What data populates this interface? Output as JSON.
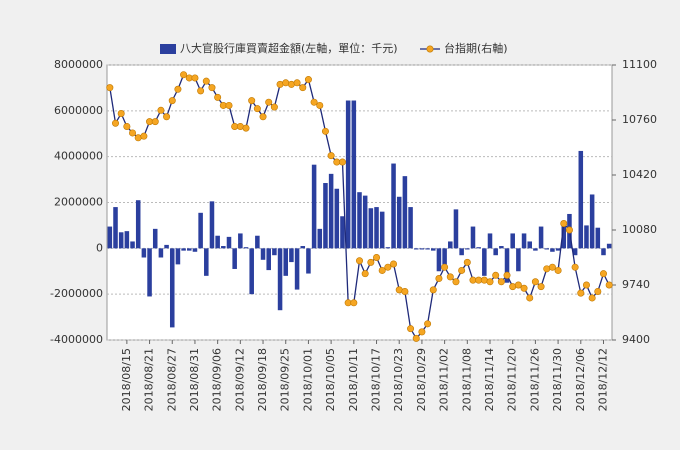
{
  "chart_data": {
    "type": "bar_line",
    "categories": [
      null,
      null,
      null,
      "2018/08/15",
      null,
      null,
      null,
      "2018/08/21",
      null,
      null,
      null,
      "2018/08/27",
      null,
      null,
      null,
      "2018/08/31",
      null,
      null,
      null,
      "2018/09/06",
      null,
      null,
      null,
      "2018/09/12",
      null,
      null,
      null,
      "2018/09/18",
      null,
      null,
      null,
      "2018/09/25",
      null,
      null,
      null,
      "2018/10/01",
      null,
      null,
      null,
      "2018/10/05",
      null,
      null,
      null,
      "2018/10/11",
      null,
      null,
      null,
      "2018/10/17",
      null,
      null,
      null,
      "2018/10/23",
      null,
      null,
      null,
      "2018/10/29",
      null,
      null,
      null,
      "2018/11/02",
      null,
      null,
      null,
      "2018/11/08",
      null,
      null,
      null,
      "2018/11/14",
      null,
      null,
      null,
      "2018/11/20",
      null,
      null,
      null,
      "2018/11/26",
      null,
      null,
      null,
      "2018/11/30",
      null,
      null,
      null,
      "2018/12/06",
      null,
      null,
      null,
      "2018/12/12",
      null
    ],
    "series": [
      {
        "name": "八大官股行庫買賣超金額(左軸，單位：千元)",
        "type": "bar",
        "color": "#2b3f9e",
        "values": [
          950000,
          1800000,
          700000,
          750000,
          300000,
          2100000,
          -400000,
          -2100000,
          850000,
          -400000,
          150000,
          -3450000,
          -700000,
          -100000,
          -100000,
          -150000,
          1550000,
          -1200000,
          2050000,
          550000,
          100000,
          500000,
          -900000,
          650000,
          50000,
          -2000000,
          550000,
          -500000,
          -950000,
          -300000,
          -2700000,
          -1200000,
          -600000,
          -1800000,
          100000,
          -1100000,
          3650000,
          850000,
          2850000,
          3250000,
          2600000,
          1400000,
          6450000,
          6450000,
          2450000,
          2300000,
          1750000,
          1800000,
          1600000,
          50000,
          3700000,
          2250000,
          3150000,
          1800000,
          -50000,
          -50000,
          -50000,
          -100000,
          -1000000,
          -700000,
          300000,
          1700000,
          -300000,
          -50000,
          950000,
          50000,
          -1200000,
          650000,
          -300000,
          100000,
          -1500000,
          650000,
          -1000000,
          650000,
          300000,
          -100000,
          950000,
          -50000,
          -150000,
          -100000,
          1100000,
          1500000,
          -300000,
          4250000,
          1000000,
          2350000,
          900000,
          -300000,
          200000
        ]
      },
      {
        "name": "台指期(右軸)",
        "type": "line",
        "axis": "y2",
        "color": "#1f2a7a",
        "marker_color": "#f5a623",
        "values": [
          10960,
          10740,
          10800,
          10720,
          10680,
          10650,
          10660,
          10750,
          10750,
          10820,
          10780,
          10880,
          10950,
          11040,
          11020,
          11020,
          10940,
          11000,
          10960,
          10900,
          10850,
          10850,
          10720,
          10720,
          10710,
          10880,
          10830,
          10780,
          10870,
          10840,
          10980,
          10990,
          10980,
          10990,
          10960,
          11010,
          10870,
          10850,
          10690,
          10540,
          10500,
          10500,
          9630,
          9630,
          9890,
          9810,
          9880,
          9910,
          9830,
          9850,
          9870,
          9710,
          9700,
          9470,
          9410,
          9450,
          9500,
          9710,
          9780,
          9850,
          9790,
          9760,
          9830,
          9880,
          9770,
          9770,
          9770,
          9760,
          9800,
          9760,
          9800,
          9730,
          9740,
          9720,
          9660,
          9760,
          9730,
          9840,
          9850,
          9830,
          10120,
          10080,
          9850,
          9690,
          9740,
          9660,
          9700,
          9810,
          9740
        ]
      }
    ],
    "ylim": [
      -4000000,
      8000000
    ],
    "yticks": [
      -4000000,
      -2000000,
      0,
      2000000,
      4000000,
      6000000,
      8000000
    ],
    "y2lim": [
      9400,
      11100
    ],
    "y2ticks": [
      9400,
      9740,
      10080,
      10420,
      10760,
      11100
    ],
    "grid": true
  }
}
